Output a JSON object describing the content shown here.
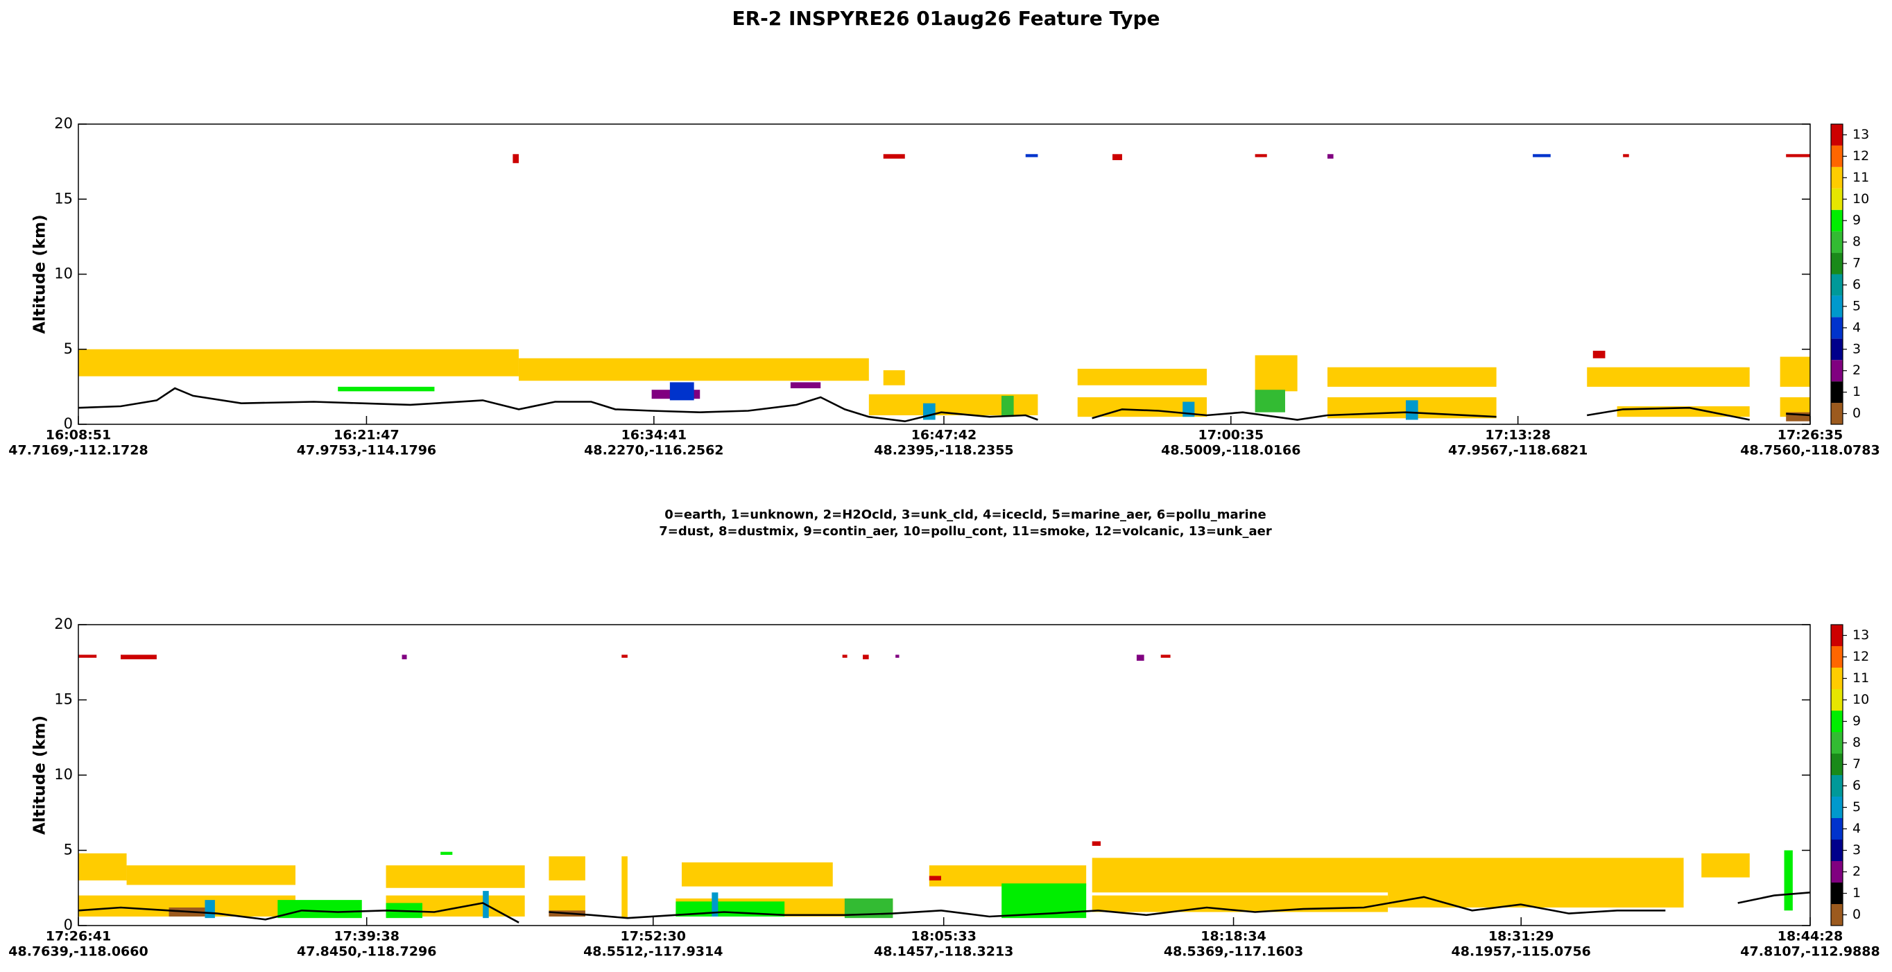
{
  "title": "ER-2  INSPYRE26  01aug26  Feature Type",
  "legend_text": [
    "0=earth, 1=unknown, 2=H2Ocld, 3=unk_cld, 4=icecld, 5=marine_aer, 6=pollu_marine",
    "7=dust, 8=dustmix, 9=contin_aer, 10=pollu_cont, 11=smoke, 12=volcanic, 13=unk_aer"
  ],
  "chart_data": [
    {
      "type": "curtain",
      "ylabel": "Altitude (km)",
      "ylim": [
        0,
        20
      ],
      "yticks": [
        0,
        5,
        10,
        15,
        20
      ],
      "xlim": [
        "16:08:51",
        "17:26:35"
      ],
      "xticks": [
        {
          "time": "16:08:51",
          "latlon": "47.7169,-112.1728"
        },
        {
          "time": "16:21:47",
          "latlon": "47.9753,-114.1796"
        },
        {
          "time": "16:34:41",
          "latlon": "48.2270,-116.2562"
        },
        {
          "time": "16:47:42",
          "latlon": "48.2395,-118.2355"
        },
        {
          "time": "17:00:35",
          "latlon": "48.5009,-118.0166"
        },
        {
          "time": "17:13:28",
          "latlon": "47.9567,-118.6821"
        },
        {
          "time": "17:26:35",
          "latlon": "48.7560,-118.0783"
        }
      ],
      "colorbar": {
        "ticks": [
          0,
          1,
          2,
          3,
          4,
          5,
          6,
          7,
          8,
          9,
          10,
          11,
          12,
          13
        ],
        "colors": [
          "#9c5a1e",
          "#000000",
          "#800080",
          "#00008b",
          "#0033cc",
          "#0099cc",
          "#009999",
          "#1a8a1a",
          "#33bb33",
          "#00ee00",
          "#e6e600",
          "#ffcc00",
          "#ff6600",
          "#cc0000"
        ]
      },
      "features": [
        {
          "class": 11,
          "start": "16:08:51",
          "end": "16:28:37",
          "bottom": 3.2,
          "top": 5.0
        },
        {
          "class": 11,
          "start": "16:28:37",
          "end": "16:44:20",
          "bottom": 2.9,
          "top": 4.4
        },
        {
          "class": 11,
          "start": "16:44:20",
          "end": "16:51:55",
          "bottom": 0.6,
          "top": 2.0
        },
        {
          "class": 11,
          "start": "16:44:59",
          "end": "16:45:57",
          "bottom": 2.6,
          "top": 3.6
        },
        {
          "class": 11,
          "start": "16:53:42",
          "end": "16:59:30",
          "bottom": 2.6,
          "top": 3.7
        },
        {
          "class": 11,
          "start": "16:53:42",
          "end": "16:59:30",
          "bottom": 0.5,
          "top": 1.8
        },
        {
          "class": 11,
          "start": "17:01:40",
          "end": "17:03:34",
          "bottom": 2.2,
          "top": 4.6
        },
        {
          "class": 11,
          "start": "17:04:55",
          "end": "17:12:30",
          "bottom": 2.5,
          "top": 3.8
        },
        {
          "class": 11,
          "start": "17:04:55",
          "end": "17:12:30",
          "bottom": 0.4,
          "top": 1.8
        },
        {
          "class": 11,
          "start": "17:16:34",
          "end": "17:23:52",
          "bottom": 2.5,
          "top": 3.8
        },
        {
          "class": 11,
          "start": "17:17:55",
          "end": "17:23:52",
          "bottom": 0.5,
          "top": 1.2
        },
        {
          "class": 11,
          "start": "17:25:14",
          "end": "17:26:35",
          "bottom": 2.5,
          "top": 4.5
        },
        {
          "class": 11,
          "start": "17:25:14",
          "end": "17:26:35",
          "bottom": 0.5,
          "top": 1.8
        },
        {
          "class": 9,
          "start": "16:20:30",
          "end": "16:24:50",
          "bottom": 2.2,
          "top": 2.5
        },
        {
          "class": 2,
          "start": "16:34:35",
          "end": "16:36:45",
          "bottom": 1.7,
          "top": 2.3
        },
        {
          "class": 4,
          "start": "16:35:24",
          "end": "16:36:29",
          "bottom": 1.6,
          "top": 2.8
        },
        {
          "class": 2,
          "start": "16:40:49",
          "end": "16:42:10",
          "bottom": 2.4,
          "top": 2.8
        },
        {
          "class": 5,
          "start": "16:46:46",
          "end": "16:47:19",
          "bottom": 0.3,
          "top": 1.4
        },
        {
          "class": 8,
          "start": "16:50:17",
          "end": "16:50:50",
          "bottom": 0.5,
          "top": 1.9
        },
        {
          "class": 5,
          "start": "16:58:25",
          "end": "16:58:57",
          "bottom": 0.5,
          "top": 1.5
        },
        {
          "class": 8,
          "start": "17:01:40",
          "end": "17:03:01",
          "bottom": 0.8,
          "top": 2.3
        },
        {
          "class": 5,
          "start": "17:08:26",
          "end": "17:08:59",
          "bottom": 0.3,
          "top": 1.6
        },
        {
          "class": 13,
          "start": "16:28:21",
          "end": "16:28:37",
          "bottom": 17.4,
          "top": 18.0
        },
        {
          "class": 13,
          "start": "16:44:59",
          "end": "16:45:57",
          "bottom": 17.7,
          "top": 18.0
        },
        {
          "class": 4,
          "start": "16:51:22",
          "end": "16:51:55",
          "bottom": 17.8,
          "top": 18.0
        },
        {
          "class": 13,
          "start": "16:55:16",
          "end": "16:55:42",
          "bottom": 17.6,
          "top": 18.0
        },
        {
          "class": 13,
          "start": "17:01:40",
          "end": "17:02:12",
          "bottom": 17.8,
          "top": 18.0
        },
        {
          "class": 2,
          "start": "17:04:55",
          "end": "17:05:11",
          "bottom": 17.7,
          "top": 18.0
        },
        {
          "class": 4,
          "start": "17:14:08",
          "end": "17:14:56",
          "bottom": 17.8,
          "top": 18.0
        },
        {
          "class": 13,
          "start": "17:18:11",
          "end": "17:18:27",
          "bottom": 17.8,
          "top": 18.0
        },
        {
          "class": 13,
          "start": "17:25:30",
          "end": "17:26:35",
          "bottom": 17.8,
          "top": 18.0
        },
        {
          "class": 13,
          "start": "17:16:50",
          "end": "17:17:23",
          "bottom": 4.4,
          "top": 4.9
        },
        {
          "class": 0,
          "start": "17:25:30",
          "end": "17:26:35",
          "bottom": 0.2,
          "top": 0.8
        }
      ],
      "surface": {
        "color": "#000000",
        "x": [
          "16:08:51",
          "16:10:45",
          "16:12:22",
          "16:13:11",
          "16:14:00",
          "16:16:10",
          "16:19:25",
          "16:21:35",
          "16:23:45",
          "16:27:00",
          "16:28:37",
          "16:30:15",
          "16:31:52",
          "16:32:57",
          "16:34:35",
          "16:36:45",
          "16:38:55",
          "16:41:05",
          "16:42:10",
          "16:43:15",
          "16:44:20",
          "16:45:57",
          "16:47:35",
          "16:49:45",
          "16:51:22",
          "16:51:55",
          "16:53:42",
          "16:54:21",
          "16:55:42",
          "16:57:20",
          "16:59:30",
          "17:01:07",
          "17:03:34",
          "17:04:55",
          "17:08:26",
          "17:12:30",
          "17:14:08",
          "17:16:34",
          "17:18:11",
          "17:21:10",
          "17:23:52",
          "17:25:14",
          "17:25:30",
          "17:26:35"
        ],
        "values": [
          1.1,
          1.2,
          1.6,
          2.4,
          1.9,
          1.4,
          1.5,
          1.4,
          1.3,
          1.6,
          1.0,
          1.5,
          1.5,
          1.0,
          0.9,
          0.8,
          0.9,
          1.3,
          1.8,
          1.0,
          0.5,
          0.2,
          0.8,
          0.5,
          0.6,
          0.3,
          null,
          0.4,
          1.0,
          0.9,
          0.6,
          0.8,
          0.3,
          0.6,
          0.8,
          0.5,
          null,
          0.6,
          1.0,
          1.1,
          0.3,
          null,
          0.7,
          0.6
        ]
      }
    },
    {
      "type": "curtain",
      "ylabel": "Altitude (km)",
      "ylim": [
        0,
        20
      ],
      "yticks": [
        0,
        5,
        10,
        15,
        20
      ],
      "xlim": [
        "17:26:41",
        "18:44:28"
      ],
      "xticks": [
        {
          "time": "17:26:41",
          "latlon": "48.7639,-118.0660"
        },
        {
          "time": "17:39:38",
          "latlon": "47.8450,-118.7296"
        },
        {
          "time": "17:52:30",
          "latlon": "48.5512,-117.9314"
        },
        {
          "time": "18:05:33",
          "latlon": "48.1457,-118.3213"
        },
        {
          "time": "18:18:34",
          "latlon": "48.5369,-117.1603"
        },
        {
          "time": "18:31:29",
          "latlon": "48.1957,-115.0756"
        },
        {
          "time": "18:44:28",
          "latlon": "47.8107,-112.9888"
        }
      ],
      "colorbar": {
        "ticks": [
          0,
          1,
          2,
          3,
          4,
          5,
          6,
          7,
          8,
          9,
          10,
          11,
          12,
          13
        ],
        "colors": [
          "#9c5a1e",
          "#000000",
          "#800080",
          "#00008b",
          "#0033cc",
          "#0099cc",
          "#009999",
          "#1a8a1a",
          "#33bb33",
          "#00ee00",
          "#e6e600",
          "#ffcc00",
          "#ff6600",
          "#cc0000"
        ]
      },
      "features": [
        {
          "class": 11,
          "start": "17:26:41",
          "end": "17:28:51",
          "bottom": 3.0,
          "top": 4.8
        },
        {
          "class": 11,
          "start": "17:28:51",
          "end": "17:36:26",
          "bottom": 2.7,
          "top": 4.0
        },
        {
          "class": 11,
          "start": "17:26:41",
          "end": "17:36:26",
          "bottom": 0.6,
          "top": 2.0
        },
        {
          "class": 11,
          "start": "17:40:30",
          "end": "17:46:44",
          "bottom": 2.5,
          "top": 4.0
        },
        {
          "class": 11,
          "start": "17:40:30",
          "end": "17:46:44",
          "bottom": 0.6,
          "top": 2.0
        },
        {
          "class": 11,
          "start": "17:47:49",
          "end": "17:49:27",
          "bottom": 3.0,
          "top": 4.6
        },
        {
          "class": 11,
          "start": "17:47:49",
          "end": "17:49:27",
          "bottom": 0.6,
          "top": 2.0
        },
        {
          "class": 11,
          "start": "17:51:05",
          "end": "17:51:21",
          "bottom": 0.5,
          "top": 4.6
        },
        {
          "class": 11,
          "start": "17:53:47",
          "end": "18:00:34",
          "bottom": 2.6,
          "top": 4.2
        },
        {
          "class": 11,
          "start": "17:53:31",
          "end": "18:03:16",
          "bottom": 0.6,
          "top": 1.8
        },
        {
          "class": 11,
          "start": "18:04:54",
          "end": "18:11:57",
          "bottom": 2.6,
          "top": 4.0
        },
        {
          "class": 11,
          "start": "18:12:13",
          "end": "18:38:47",
          "bottom": 2.2,
          "top": 4.5
        },
        {
          "class": 11,
          "start": "18:12:13",
          "end": "18:25:30",
          "bottom": 0.9,
          "top": 2.0
        },
        {
          "class": 11,
          "start": "18:25:30",
          "end": "18:38:47",
          "bottom": 1.2,
          "top": 3.0
        },
        {
          "class": 11,
          "start": "18:39:35",
          "end": "18:41:45",
          "bottom": 3.2,
          "top": 4.8
        },
        {
          "class": 9,
          "start": "17:35:38",
          "end": "17:39:25",
          "bottom": 0.5,
          "top": 1.7
        },
        {
          "class": 9,
          "start": "17:40:30",
          "end": "17:42:08",
          "bottom": 0.5,
          "top": 1.5
        },
        {
          "class": 9,
          "start": "17:53:31",
          "end": "17:58:24",
          "bottom": 0.6,
          "top": 1.6
        },
        {
          "class": 8,
          "start": "18:01:06",
          "end": "18:03:16",
          "bottom": 0.5,
          "top": 1.8
        },
        {
          "class": 9,
          "start": "18:08:09",
          "end": "18:11:57",
          "bottom": 0.5,
          "top": 2.8
        },
        {
          "class": 9,
          "start": "18:43:18",
          "end": "18:43:41",
          "bottom": 1.0,
          "top": 5.0
        },
        {
          "class": 5,
          "start": "17:32:22",
          "end": "17:32:49",
          "bottom": 0.5,
          "top": 1.7
        },
        {
          "class": 5,
          "start": "17:44:51",
          "end": "17:45:07",
          "bottom": 0.5,
          "top": 2.3
        },
        {
          "class": 5,
          "start": "17:55:08",
          "end": "17:55:25",
          "bottom": 0.6,
          "top": 2.2
        },
        {
          "class": 9,
          "start": "17:42:57",
          "end": "17:43:29",
          "bottom": 4.7,
          "top": 4.9
        },
        {
          "class": 13,
          "start": "18:04:54",
          "end": "18:05:26",
          "bottom": 3.0,
          "top": 3.3
        },
        {
          "class": 13,
          "start": "18:12:13",
          "end": "18:12:36",
          "bottom": 5.3,
          "top": 5.6
        },
        {
          "class": 0,
          "start": "17:30:45",
          "end": "17:32:22",
          "bottom": 0.6,
          "top": 1.2
        },
        {
          "class": 0,
          "start": "17:47:49",
          "end": "17:49:27",
          "bottom": 0.6,
          "top": 1.0
        },
        {
          "class": 13,
          "start": "17:26:41",
          "end": "17:27:30",
          "bottom": 17.8,
          "top": 18.0
        },
        {
          "class": 13,
          "start": "17:28:35",
          "end": "17:30:12",
          "bottom": 17.7,
          "top": 18.0
        },
        {
          "class": 2,
          "start": "17:41:13",
          "end": "17:41:26",
          "bottom": 17.7,
          "top": 18.0
        },
        {
          "class": 13,
          "start": "17:51:05",
          "end": "17:51:21",
          "bottom": 17.8,
          "top": 18.0
        },
        {
          "class": 13,
          "start": "18:01:00",
          "end": "18:01:13",
          "bottom": 17.8,
          "top": 18.0
        },
        {
          "class": 13,
          "start": "18:01:55",
          "end": "18:02:11",
          "bottom": 17.7,
          "top": 18.0
        },
        {
          "class": 2,
          "start": "18:03:23",
          "end": "18:03:33",
          "bottom": 17.8,
          "top": 18.0
        },
        {
          "class": 2,
          "start": "18:14:13",
          "end": "18:14:33",
          "bottom": 17.6,
          "top": 18.0
        },
        {
          "class": 13,
          "start": "18:15:18",
          "end": "18:15:44",
          "bottom": 17.8,
          "top": 18.0
        }
      ],
      "surface": {
        "color": "#000000",
        "x": [
          "17:26:41",
          "17:28:35",
          "17:30:45",
          "17:32:55",
          "17:35:05",
          "17:36:43",
          "17:38:20",
          "17:40:30",
          "17:42:40",
          "17:44:51",
          "17:46:28",
          "17:46:44",
          "17:47:49",
          "17:49:43",
          "17:51:21",
          "17:53:31",
          "17:55:41",
          "17:58:24",
          "18:01:06",
          "18:03:16",
          "18:05:26",
          "18:07:36",
          "18:10:19",
          "18:12:29",
          "18:14:39",
          "18:17:22",
          "18:19:32",
          "18:21:42",
          "18:24:25",
          "18:27:07",
          "18:29:17",
          "18:31:28",
          "18:33:38",
          "18:35:48",
          "18:37:58",
          "18:39:03",
          "18:41:13",
          "18:42:51",
          "18:44:28"
        ],
        "values": [
          1.0,
          1.2,
          1.0,
          0.8,
          0.4,
          1.0,
          0.9,
          1.0,
          0.9,
          1.5,
          0.2,
          null,
          0.9,
          0.7,
          0.5,
          0.7,
          0.9,
          0.7,
          0.7,
          0.8,
          1.0,
          0.6,
          0.8,
          1.0,
          0.7,
          1.2,
          0.9,
          1.1,
          1.2,
          1.9,
          1.0,
          1.4,
          0.8,
          1.0,
          1.0,
          null,
          1.5,
          2.0,
          2.2
        ]
      }
    }
  ]
}
